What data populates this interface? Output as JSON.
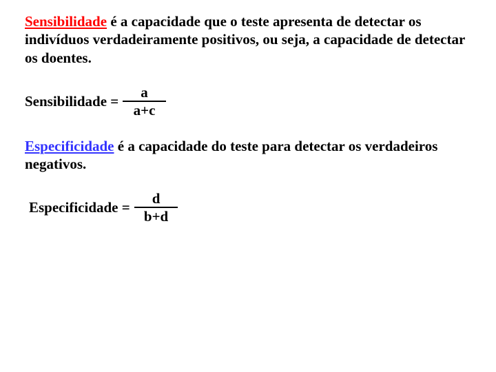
{
  "definitions": {
    "sens_term": "Sensibilidade",
    "sens_def_rest": " é a capacidade que o teste apresenta de detectar os indivíduos verdadeiramente positivos, ou seja, a capacidade de detectar os doentes.",
    "spec_term": "Especificidade",
    "spec_def_rest": " é a capacidade do teste para detectar os verdadeiros negativos."
  },
  "formulas": {
    "sens_label": "Sensibilidade = ",
    "sens_num": "a",
    "sens_den": "a+c",
    "spec_label": "Especificidade = ",
    "spec_num": "d",
    "spec_den": "b+d"
  },
  "style": {
    "term_red_color": "#ff0000",
    "term_blue_color": "#3333ff",
    "text_color": "#000000",
    "background": "#ffffff",
    "fontsize_pt": 16
  }
}
